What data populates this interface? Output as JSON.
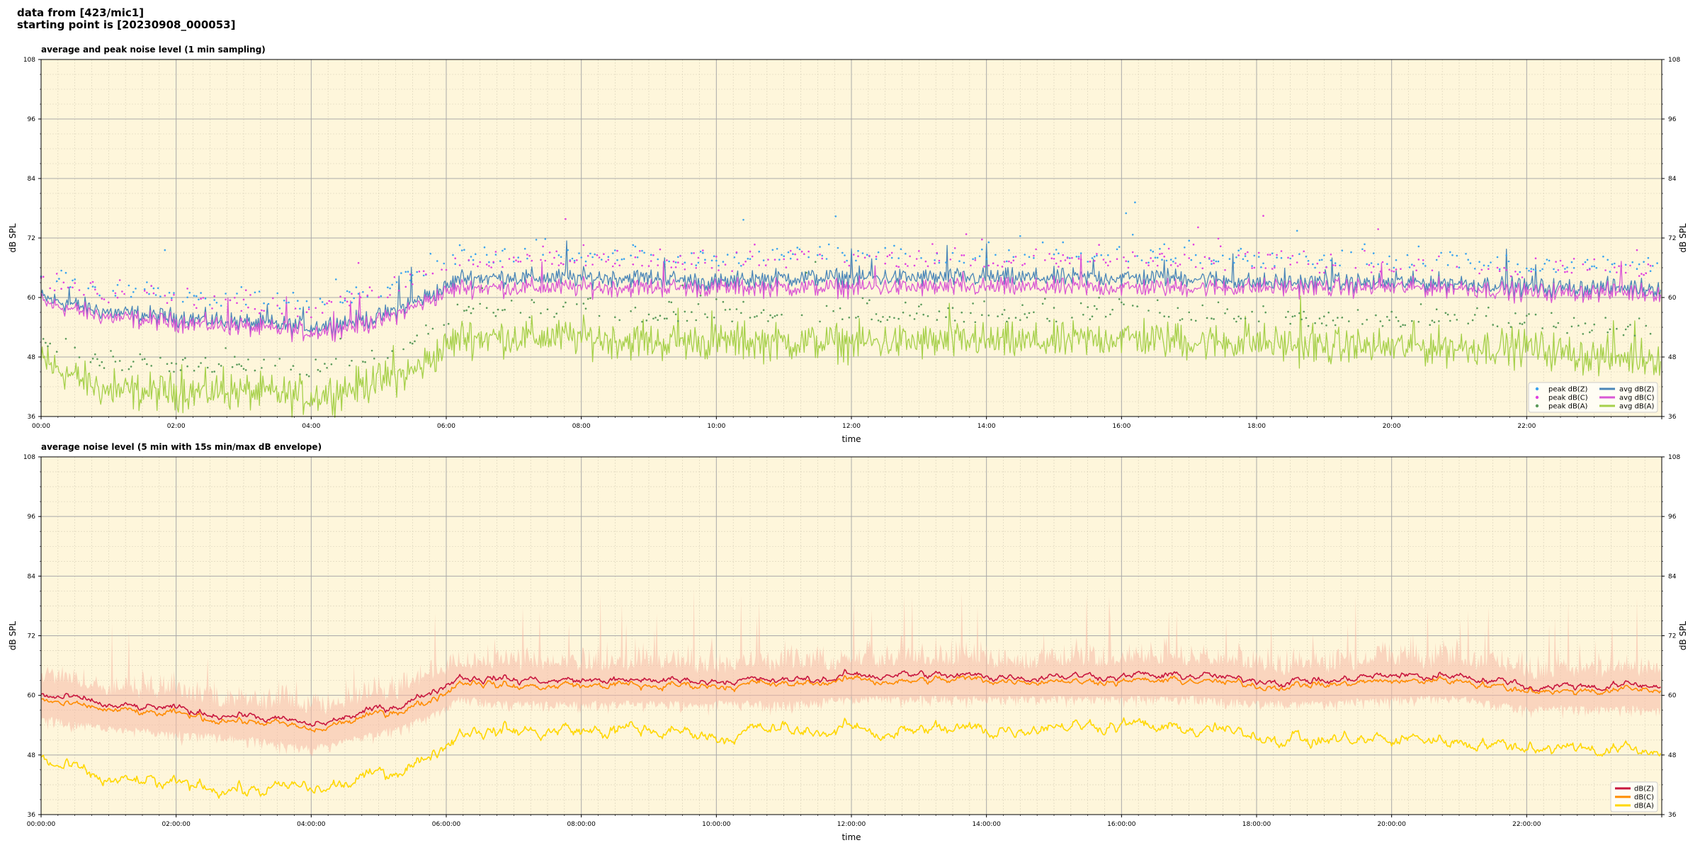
{
  "header": {
    "line1": "data from [423/mic1]",
    "line2": "starting point is [20230908_000053]"
  },
  "colors": {
    "plot_bg": "#fef6db",
    "z": "#4a86b8",
    "c": "#d957d4",
    "a": "#a6d04a",
    "peak_z": "#3aa3ef",
    "peak_c": "#e040e0",
    "peak_a": "#5a9a5a",
    "dbz": "#c8163e",
    "dbc": "#ff8c00",
    "dba": "#ffd700",
    "envelope": "#f6b9a6"
  },
  "chart_data": [
    {
      "type": "line",
      "title": "average and peak noise level (1 min sampling)",
      "xlabel": "time",
      "ylabel": "dB SPL",
      "ylabel_right": "dB SPL",
      "xlim": [
        0,
        24
      ],
      "ylim": [
        36,
        108
      ],
      "yticks": [
        36,
        48,
        60,
        72,
        84,
        96,
        108
      ],
      "xtick_labels": [
        "00:00",
        "02:00",
        "04:00",
        "06:00",
        "08:00",
        "10:00",
        "12:00",
        "14:00",
        "16:00",
        "18:00",
        "20:00",
        "22:00"
      ],
      "grid": true,
      "legend_position": "lower-right",
      "x_hours": [
        0,
        1,
        2,
        3,
        4,
        5,
        5.5,
        6,
        6.2,
        7,
        8,
        9,
        10,
        11,
        12,
        13,
        14,
        15,
        16,
        17,
        18,
        19,
        20,
        21,
        22,
        23,
        24
      ],
      "series": [
        {
          "name": "avg dB(Z)",
          "key": "z",
          "values": [
            60,
            57,
            56,
            55,
            54,
            56,
            59,
            62,
            64,
            64,
            64,
            64,
            63,
            64,
            64,
            64,
            64,
            64,
            64,
            64,
            63,
            63,
            63,
            63,
            62,
            62,
            62
          ]
        },
        {
          "name": "avg dB(C)",
          "key": "c",
          "values": [
            59,
            56,
            55,
            54,
            53,
            55,
            58,
            61,
            62,
            62,
            62,
            62,
            62,
            62,
            62,
            62,
            62,
            62,
            62,
            62,
            62,
            62,
            62,
            62,
            61,
            61,
            61
          ]
        },
        {
          "name": "avg dB(A)",
          "key": "a",
          "values": [
            47,
            41,
            41,
            41,
            40,
            43,
            45,
            50,
            52,
            52,
            52,
            51,
            51,
            51,
            51,
            51,
            51,
            51,
            52,
            51,
            51,
            50,
            50,
            50,
            50,
            48,
            48
          ]
        },
        {
          "name": "peak dB(Z)",
          "key": "peak_z",
          "scatter": true,
          "values": [
            65,
            62,
            61,
            60,
            59,
            62,
            65,
            68,
            69,
            69,
            69,
            69,
            68,
            69,
            69,
            69,
            69,
            69,
            69,
            69,
            68,
            68,
            68,
            68,
            67,
            67,
            67
          ]
        },
        {
          "name": "peak dB(C)",
          "key": "peak_c",
          "scatter": true,
          "values": [
            64,
            61,
            60,
            59,
            58,
            61,
            64,
            67,
            68,
            68,
            68,
            68,
            67,
            68,
            68,
            68,
            68,
            68,
            68,
            68,
            67,
            67,
            67,
            67,
            66,
            66,
            66
          ]
        },
        {
          "name": "peak dB(A)",
          "key": "peak_a",
          "scatter": true,
          "values": [
            52,
            47,
            47,
            47,
            46,
            49,
            51,
            56,
            58,
            58,
            58,
            57,
            57,
            57,
            57,
            57,
            57,
            57,
            58,
            57,
            57,
            56,
            56,
            56,
            56,
            54,
            54
          ]
        }
      ]
    },
    {
      "type": "line",
      "title": "average noise level (5 min with 15s min/max dB envelope)",
      "xlabel": "time",
      "ylabel": "dB SPL",
      "ylabel_right": "dB SPL",
      "xlim": [
        0,
        24
      ],
      "ylim": [
        36,
        108
      ],
      "yticks": [
        36,
        48,
        60,
        72,
        84,
        96,
        108
      ],
      "xtick_labels": [
        "00:00:00",
        "02:00:00",
        "04:00:00",
        "06:00:00",
        "08:00:00",
        "10:00:00",
        "12:00:00",
        "14:00:00",
        "16:00:00",
        "18:00:00",
        "20:00:00",
        "22:00:00"
      ],
      "grid": true,
      "legend_position": "lower-right",
      "x_hours": [
        0,
        1,
        2,
        3,
        4,
        5,
        5.5,
        6,
        6.2,
        7,
        8,
        9,
        10,
        11,
        12,
        13,
        14,
        15,
        16,
        17,
        18,
        19,
        20,
        21,
        22,
        23,
        24
      ],
      "series": [
        {
          "name": "dB(Z)",
          "key": "dbz",
          "values": [
            60,
            58,
            57,
            56,
            54,
            57,
            59,
            62,
            64,
            63,
            63,
            63,
            63,
            63,
            64,
            64,
            64,
            64,
            64,
            64,
            63,
            63,
            64,
            64,
            62,
            62,
            62
          ]
        },
        {
          "name": "dB(C)",
          "key": "dbc",
          "values": [
            59,
            57,
            56,
            55,
            53,
            56,
            58,
            61,
            63,
            62,
            62,
            62,
            62,
            62,
            63,
            63,
            63,
            63,
            63,
            63,
            62,
            62,
            63,
            63,
            61,
            61,
            61
          ]
        },
        {
          "name": "dB(A)",
          "key": "dba",
          "values": [
            47,
            43,
            42,
            41,
            41,
            44,
            46,
            50,
            53,
            53,
            53,
            53,
            52,
            53,
            53,
            53,
            53,
            54,
            54,
            53,
            52,
            51,
            51,
            51,
            50,
            49,
            49
          ]
        }
      ]
    }
  ]
}
